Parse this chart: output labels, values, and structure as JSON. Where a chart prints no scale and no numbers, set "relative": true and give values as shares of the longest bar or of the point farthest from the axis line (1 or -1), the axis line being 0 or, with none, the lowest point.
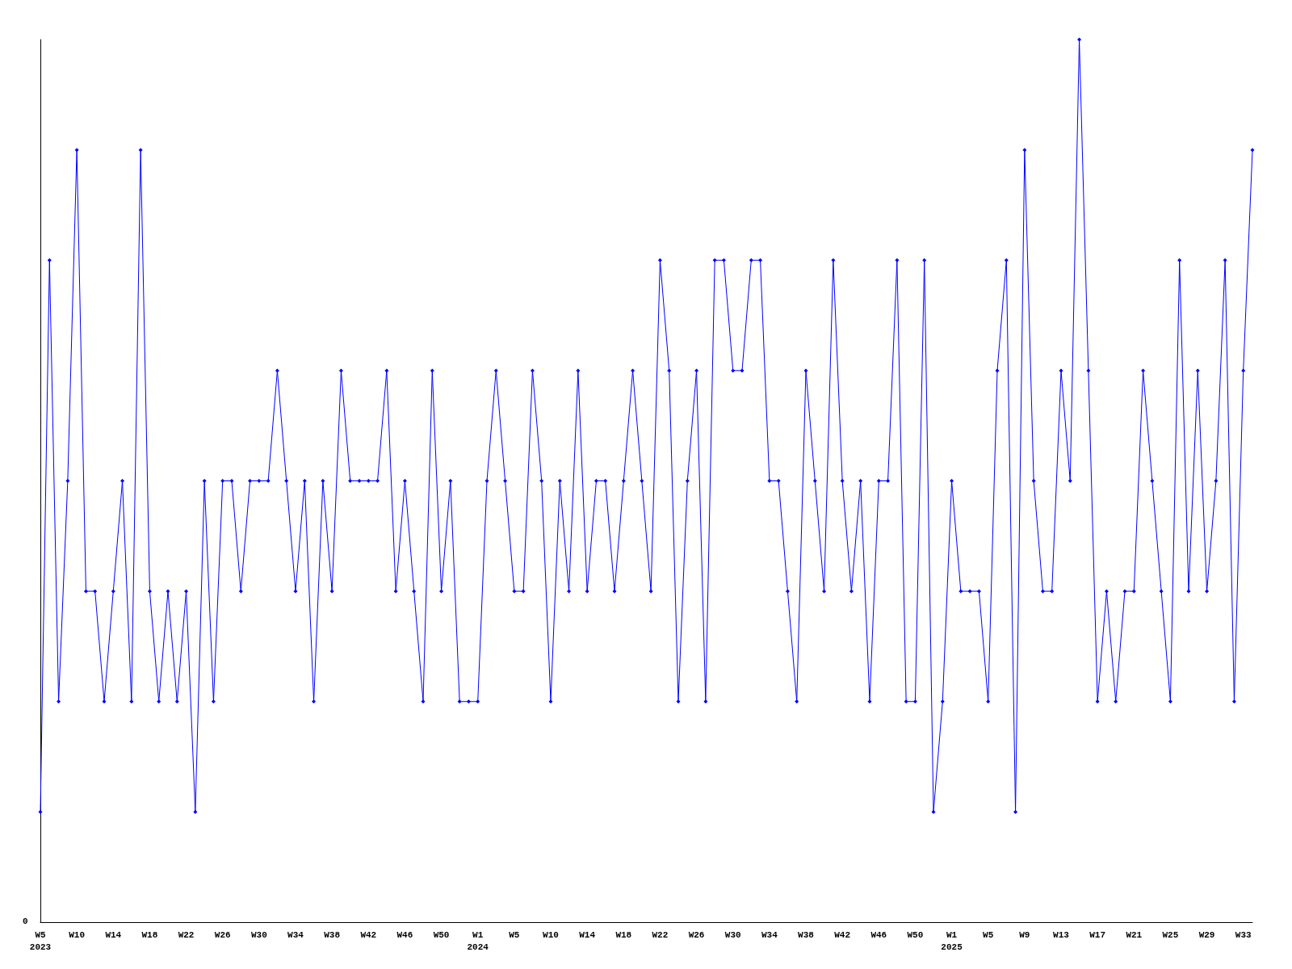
{
  "chart_data": {
    "type": "line",
    "relative": true,
    "marker": "diamond",
    "color": "#0000ff",
    "categories": [
      "W5\n2023",
      null,
      null,
      null,
      "W10",
      null,
      null,
      null,
      "W14",
      null,
      null,
      null,
      "W18",
      null,
      null,
      null,
      "W22",
      null,
      null,
      null,
      "W26",
      null,
      null,
      null,
      "W30",
      null,
      null,
      null,
      "W34",
      null,
      null,
      null,
      "W38",
      null,
      null,
      null,
      "W42",
      null,
      null,
      null,
      "W46",
      null,
      null,
      null,
      "W50",
      null,
      null,
      null,
      "W1\n2024",
      null,
      null,
      null,
      "W5",
      null,
      null,
      null,
      "W10",
      null,
      null,
      null,
      "W14",
      null,
      null,
      null,
      "W18",
      null,
      null,
      null,
      "W22",
      null,
      null,
      null,
      "W26",
      null,
      null,
      null,
      "W30",
      null,
      null,
      null,
      "W34",
      null,
      null,
      null,
      "W38",
      null,
      null,
      null,
      "W42",
      null,
      null,
      null,
      "W46",
      null,
      null,
      null,
      "W50",
      null,
      null,
      null,
      "W1\n2025",
      null,
      null,
      null,
      "W5",
      null,
      null,
      null,
      "W9",
      null,
      null,
      null,
      "W13",
      null,
      null,
      null,
      "W17",
      null,
      null,
      null,
      "W21",
      null,
      null,
      null,
      "W25",
      null,
      null,
      null,
      "W29",
      null,
      null,
      null,
      "W33",
      null
    ],
    "values": [
      0.125,
      0.75,
      0.25,
      0.5,
      0.875,
      0.375,
      0.375,
      0.25,
      0.375,
      0.5,
      0.25,
      0.875,
      0.375,
      0.25,
      0.375,
      0.25,
      0.375,
      0.125,
      0.5,
      0.25,
      0.5,
      0.5,
      0.375,
      0.5,
      0.5,
      0.5,
      0.625,
      0.5,
      0.375,
      0.5,
      0.25,
      0.5,
      0.375,
      0.625,
      0.5,
      0.5,
      0.5,
      0.5,
      0.625,
      0.375,
      0.5,
      0.375,
      0.25,
      0.625,
      0.375,
      0.5,
      0.25,
      0.25,
      0.25,
      0.5,
      0.625,
      0.5,
      0.375,
      0.375,
      0.625,
      0.5,
      0.25,
      0.5,
      0.375,
      0.625,
      0.375,
      0.5,
      0.5,
      0.375,
      0.5,
      0.625,
      0.5,
      0.375,
      0.75,
      0.625,
      0.25,
      0.5,
      0.625,
      0.25,
      0.75,
      0.75,
      0.625,
      0.625,
      0.75,
      0.75,
      0.5,
      0.5,
      0.375,
      0.25,
      0.625,
      0.5,
      0.375,
      0.75,
      0.5,
      0.375,
      0.5,
      0.25,
      0.5,
      0.5,
      0.75,
      0.25,
      0.25,
      0.75,
      0.125,
      0.25,
      0.5,
      0.375,
      0.375,
      0.375,
      0.25,
      0.625,
      0.75,
      0.125,
      0.875,
      0.5,
      0.375,
      0.375,
      0.625,
      0.5,
      1,
      0.625,
      0.25,
      0.375,
      0.25,
      0.375,
      0.375,
      0.625,
      0.5,
      0.375,
      0.25,
      0.75,
      0.375,
      0.625,
      0.375,
      0.5,
      0.75,
      0.25,
      0.625,
      0.875
    ],
    "annotations": [
      "0"
    ]
  }
}
